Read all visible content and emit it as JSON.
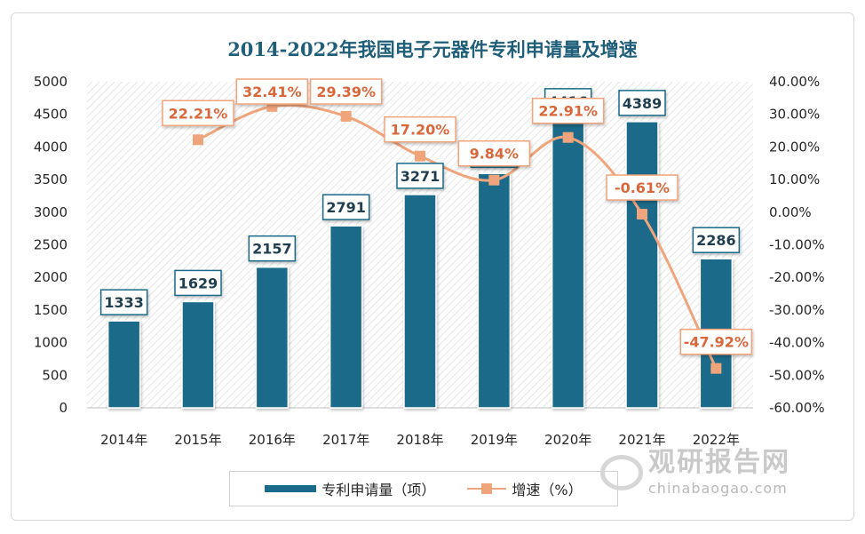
{
  "title": "2014-2022年我国电子元器件专利申请量及增速",
  "chart_data": {
    "type": "bar",
    "title": "2014-2022年我国电子元器件专利申请量及增速",
    "categories": [
      "2014年",
      "2015年",
      "2016年",
      "2017年",
      "2018年",
      "2019年",
      "2020年",
      "2021年",
      "2022年"
    ],
    "series": [
      {
        "name": "专利申请量（项）",
        "type": "bar",
        "axis": "left",
        "color": "#1b6a8a",
        "values": [
          1333,
          1629,
          2157,
          2791,
          3271,
          3593,
          4416,
          4389,
          2286
        ],
        "labels": [
          "1333",
          "1629",
          "2157",
          "2791",
          "3271",
          "3593",
          "4416",
          "4389",
          "2286"
        ]
      },
      {
        "name": "增速（%）",
        "type": "line",
        "axis": "right",
        "color": "#f0a47c",
        "values": [
          null,
          22.21,
          32.41,
          29.39,
          17.2,
          9.84,
          22.91,
          -0.61,
          -47.92
        ],
        "labels": [
          "",
          "22.21%",
          "32.41%",
          "29.39%",
          "17.20%",
          "9.84%",
          "22.91%",
          "-0.61%",
          "-47.92%"
        ]
      }
    ],
    "y_left": {
      "min": 0,
      "max": 5000,
      "step": 500,
      "ticks": [
        "0",
        "500",
        "1000",
        "1500",
        "2000",
        "2500",
        "3000",
        "3500",
        "4000",
        "4500",
        "5000"
      ]
    },
    "y_right": {
      "min": -60,
      "max": 40,
      "step": 10,
      "ticks": [
        "-60.00%",
        "-50.00%",
        "-40.00%",
        "-30.00%",
        "-20.00%",
        "-10.00%",
        "0.00%",
        "10.00%",
        "20.00%",
        "30.00%",
        "40.00%"
      ]
    },
    "legend_position": "bottom"
  },
  "legend": {
    "bar_label": "专利申请量（项）",
    "line_label": "增速（%）"
  },
  "watermark": {
    "cn": "观研报告网",
    "en": "chinabaogao.com"
  }
}
